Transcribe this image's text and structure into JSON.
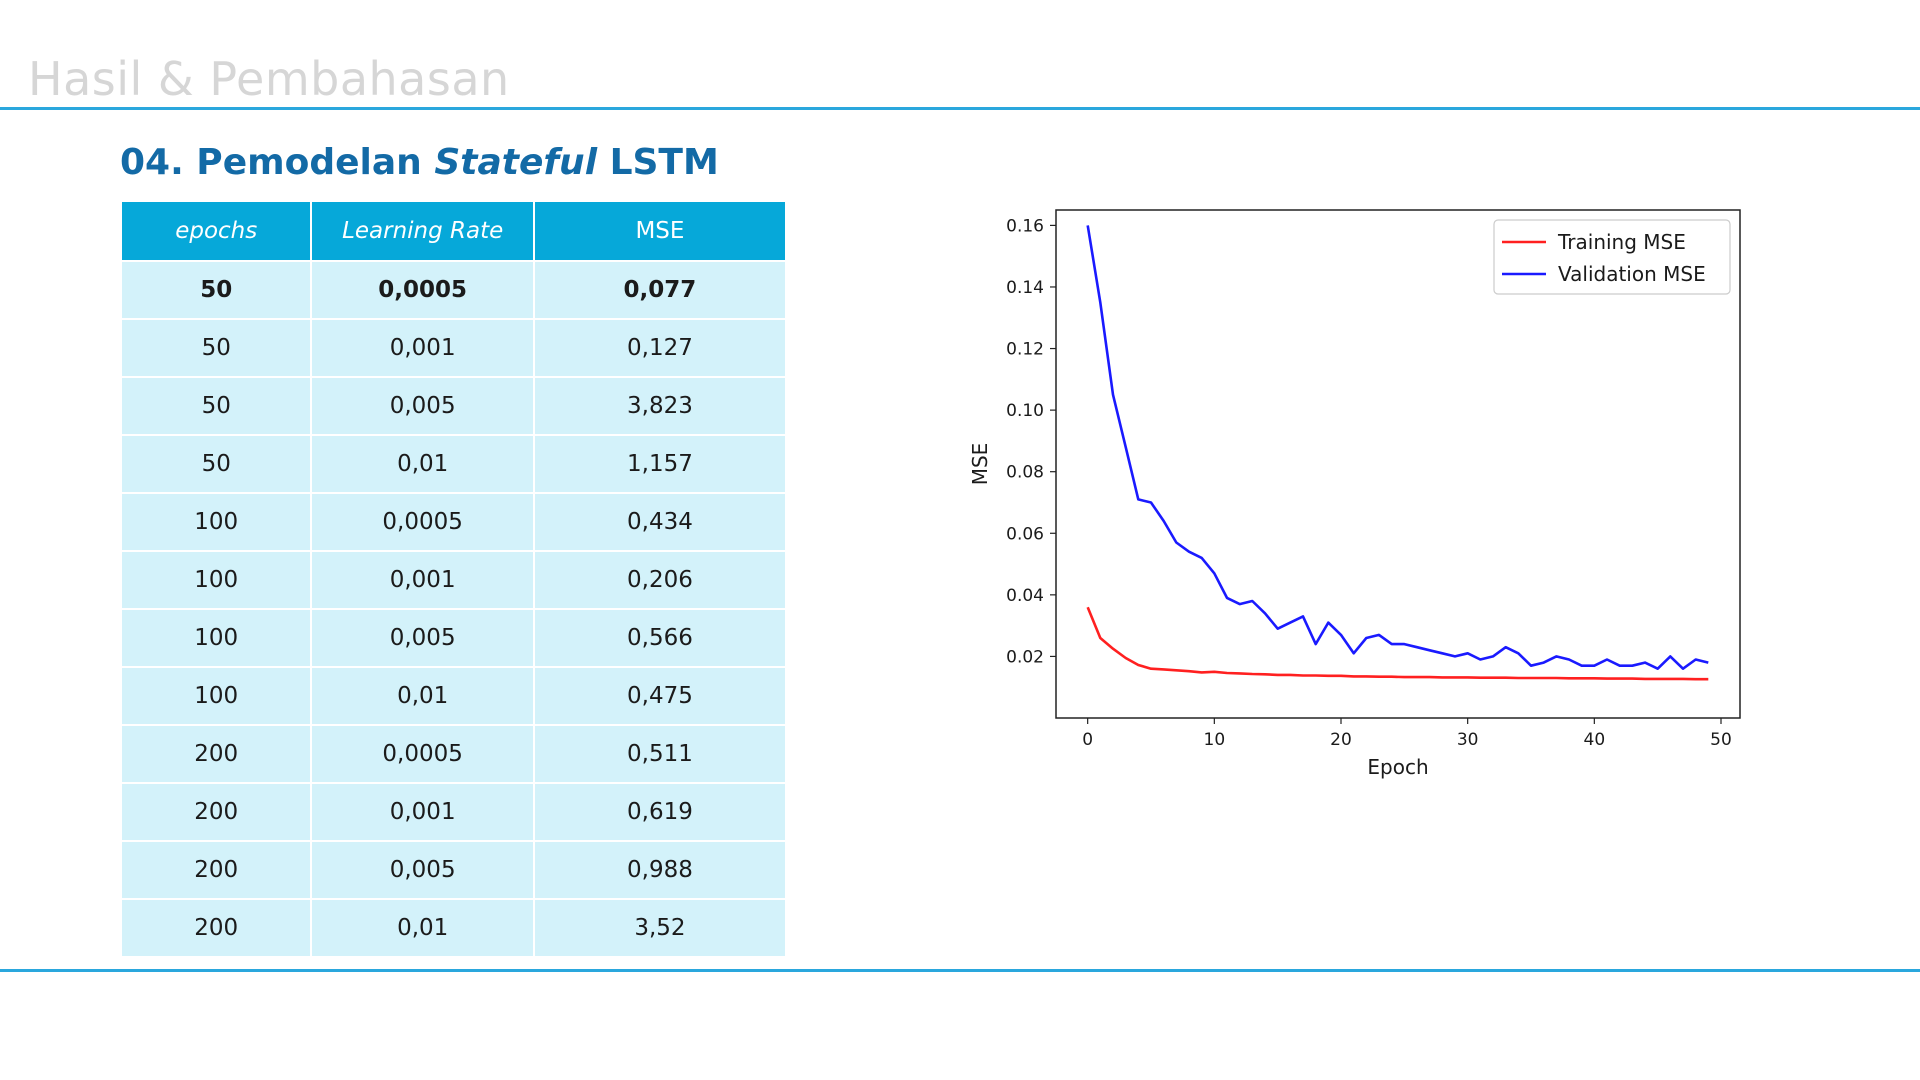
{
  "slide": {
    "title": "Hasil & Pembahasan",
    "heading_prefix": "04. Pemodelan ",
    "heading_italic": "Stateful",
    "heading_suffix": " LSTM"
  },
  "table": {
    "headers": [
      "epochs",
      "Learning Rate",
      "MSE"
    ],
    "rows": [
      [
        "50",
        "0,0005",
        "0,077"
      ],
      [
        "50",
        "0,001",
        "0,127"
      ],
      [
        "50",
        "0,005",
        "3,823"
      ],
      [
        "50",
        "0,01",
        "1,157"
      ],
      [
        "100",
        "0,0005",
        "0,434"
      ],
      [
        "100",
        "0,001",
        "0,206"
      ],
      [
        "100",
        "0,005",
        "0,566"
      ],
      [
        "100",
        "0,01",
        "0,475"
      ],
      [
        "200",
        "0,0005",
        "0,511"
      ],
      [
        "200",
        "0,001",
        "0,619"
      ],
      [
        "200",
        "0,005",
        "0,988"
      ],
      [
        "200",
        "0,01",
        "3,52"
      ]
    ]
  },
  "chart_data": {
    "type": "line",
    "xlabel": "Epoch",
    "ylabel": "MSE",
    "xlim": [
      -2.5,
      51.5
    ],
    "ylim": [
      0.0,
      0.165
    ],
    "xticks": [
      0,
      10,
      20,
      30,
      40,
      50
    ],
    "yticks": [
      0.02,
      0.04,
      0.06,
      0.08,
      0.1,
      0.12,
      0.14,
      0.16
    ],
    "ytick_labels": [
      "0.02",
      "0.04",
      "0.06",
      "0.08",
      "0.10",
      "0.12",
      "0.14",
      "0.16"
    ],
    "legend_position": "top-right",
    "grid": false,
    "series": [
      {
        "name": "Training MSE",
        "color": "#ff2020",
        "x": [
          0,
          1,
          2,
          3,
          4,
          5,
          6,
          7,
          8,
          9,
          10,
          11,
          12,
          13,
          14,
          15,
          16,
          17,
          18,
          19,
          20,
          21,
          22,
          23,
          24,
          25,
          26,
          27,
          28,
          29,
          30,
          31,
          32,
          33,
          34,
          35,
          36,
          37,
          38,
          39,
          40,
          41,
          42,
          43,
          44,
          45,
          46,
          47,
          48,
          49
        ],
        "y": [
          0.036,
          0.026,
          0.0225,
          0.0195,
          0.0172,
          0.016,
          0.0158,
          0.0155,
          0.0152,
          0.0148,
          0.015,
          0.0146,
          0.0145,
          0.0143,
          0.0142,
          0.014,
          0.014,
          0.0138,
          0.0138,
          0.0137,
          0.0137,
          0.0135,
          0.0135,
          0.0134,
          0.0134,
          0.0133,
          0.0133,
          0.0133,
          0.0132,
          0.0132,
          0.0132,
          0.0131,
          0.0131,
          0.0131,
          0.013,
          0.013,
          0.013,
          0.013,
          0.0129,
          0.0129,
          0.0129,
          0.0128,
          0.0128,
          0.0128,
          0.0127,
          0.0127,
          0.0127,
          0.0127,
          0.0126,
          0.0126
        ]
      },
      {
        "name": "Validation MSE",
        "color": "#1a1aff",
        "x": [
          0,
          1,
          2,
          3,
          4,
          5,
          6,
          7,
          8,
          9,
          10,
          11,
          12,
          13,
          14,
          15,
          16,
          17,
          18,
          19,
          20,
          21,
          22,
          23,
          24,
          25,
          26,
          27,
          28,
          29,
          30,
          31,
          32,
          33,
          34,
          35,
          36,
          37,
          38,
          39,
          40,
          41,
          42,
          43,
          44,
          45,
          46,
          47,
          48,
          49
        ],
        "y": [
          0.16,
          0.135,
          0.105,
          0.088,
          0.071,
          0.07,
          0.064,
          0.057,
          0.054,
          0.052,
          0.047,
          0.039,
          0.037,
          0.038,
          0.034,
          0.029,
          0.031,
          0.033,
          0.024,
          0.031,
          0.027,
          0.021,
          0.026,
          0.027,
          0.024,
          0.024,
          0.023,
          0.022,
          0.021,
          0.02,
          0.021,
          0.019,
          0.02,
          0.023,
          0.021,
          0.017,
          0.018,
          0.02,
          0.019,
          0.017,
          0.017,
          0.019,
          0.017,
          0.017,
          0.018,
          0.016,
          0.02,
          0.016,
          0.019,
          0.018
        ]
      }
    ]
  }
}
